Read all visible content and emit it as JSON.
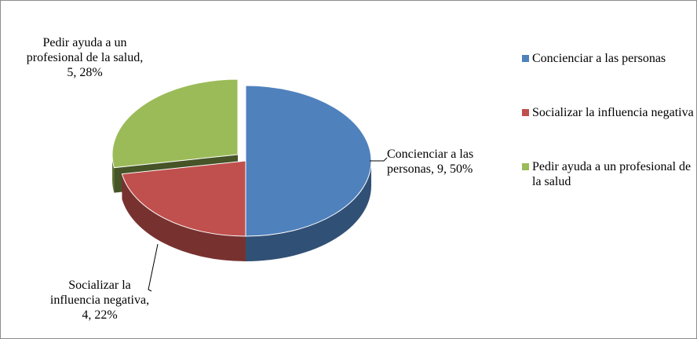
{
  "chart_data": {
    "type": "pie",
    "categories": [
      "Concienciar a las personas",
      "Socializar la influencia negativa",
      "Pedir ayuda a un profesional de la salud"
    ],
    "values": [
      9,
      4,
      5
    ],
    "value_labels": [
      "Concienciar a las personas, 9, 50%",
      "Socializar la influencia negativa, 4, 22%",
      "Pedir ayuda a un profesional de la salud, 5, 28%"
    ],
    "colors": [
      "#4f81bd",
      "#c0504d",
      "#9bbb59"
    ],
    "legend": "right"
  }
}
